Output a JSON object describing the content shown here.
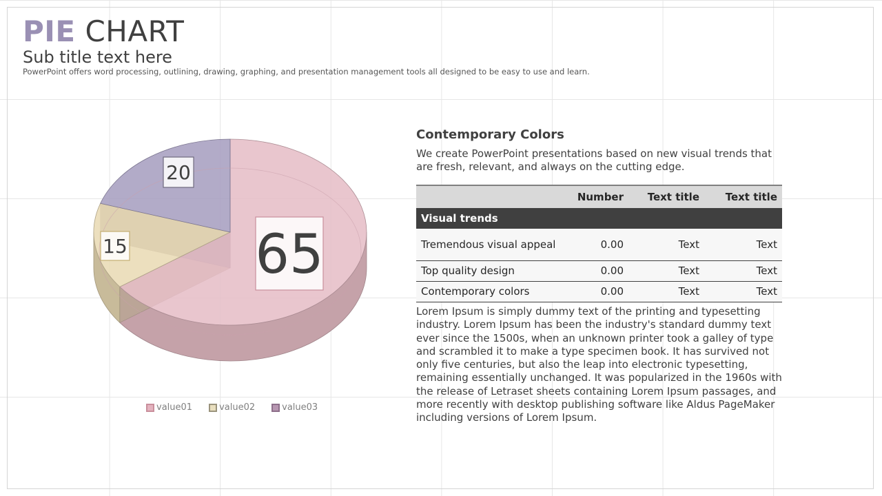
{
  "header": {
    "title_part1": "PIE",
    "title_part2": "CHART",
    "subtitle": "Sub title text here",
    "description": "PowerPoint offers word processing, outlining, drawing, graphing, and presentation management tools all designed to be easy to use and learn."
  },
  "chart_data": {
    "type": "pie",
    "title": "",
    "categories": [
      "value01",
      "value02",
      "value03"
    ],
    "values": [
      65,
      15,
      20
    ],
    "data_labels": [
      "65",
      "15",
      "20"
    ],
    "colors": [
      "#e5bcc5",
      "#e9d9b3",
      "#a49cbe"
    ],
    "legend_position": "bottom",
    "style": "3d"
  },
  "legend": {
    "items": [
      {
        "label": "value01",
        "color": "#e4b3bf",
        "border": "#c98f9c"
      },
      {
        "label": "value02",
        "color": "#e9dfbf",
        "border": "#9a937c"
      },
      {
        "label": "value03",
        "color": "#b796b1",
        "border": "#8d6f8a"
      }
    ]
  },
  "side": {
    "heading": "Contemporary Colors",
    "intro": "We create PowerPoint presentations based on new visual trends that are fresh, relevant, and always on the cutting edge.",
    "table": {
      "headers": [
        "",
        "Number",
        "Text title",
        "Text title"
      ],
      "group": "Visual trends",
      "rows": [
        [
          "Tremendous visual appeal",
          "0.00",
          "Text",
          "Text"
        ],
        [
          "Top quality design",
          "0.00",
          "Text",
          "Text"
        ],
        [
          "Contemporary colors",
          "0.00",
          "Text",
          "Text"
        ]
      ]
    },
    "body": "Lorem Ipsum is simply dummy text of the printing and typesetting industry. Lorem Ipsum has been the industry's standard dummy text ever since the 1500s, when an unknown printer took a galley of type and scrambled it to make a type specimen book. It has survived not only five centuries, but also the leap into electronic typesetting, remaining essentially unchanged. It was popularized in the 1960s with the release of Letraset sheets containing Lorem Ipsum passages, and more recently with desktop publishing software like Aldus PageMaker including versions of Lorem Ipsum."
  }
}
